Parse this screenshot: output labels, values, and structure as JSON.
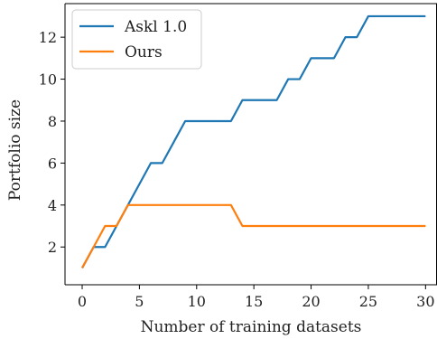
{
  "chart_data": {
    "type": "line",
    "xlabel": "Number of training datasets",
    "ylabel": "Portfolio size",
    "xlim": [
      -1.5,
      31
    ],
    "ylim": [
      0.2,
      13.6
    ],
    "xticks": [
      0,
      5,
      10,
      15,
      20,
      25,
      30
    ],
    "yticks": [
      2,
      4,
      6,
      8,
      10,
      12
    ],
    "grid": false,
    "legend_position": "top-left",
    "series": [
      {
        "name": "Askl 1.0",
        "color": "#1f77b4",
        "x": [
          0,
          1,
          2,
          3,
          4,
          5,
          6,
          7,
          8,
          9,
          10,
          11,
          12,
          13,
          14,
          15,
          16,
          17,
          18,
          19,
          20,
          21,
          22,
          23,
          24,
          25,
          26,
          27,
          28,
          29,
          30
        ],
        "y": [
          1,
          2,
          2,
          3,
          4,
          5,
          6,
          6,
          7,
          8,
          8,
          8,
          8,
          8,
          9,
          9,
          9,
          9,
          10,
          10,
          11,
          11,
          11,
          12,
          12,
          13,
          13,
          13,
          13,
          13,
          13
        ]
      },
      {
        "name": "Ours",
        "color": "#ff7f0e",
        "x": [
          0,
          1,
          2,
          3,
          4,
          5,
          6,
          7,
          8,
          9,
          10,
          11,
          12,
          13,
          14,
          15,
          16,
          17,
          18,
          19,
          20,
          21,
          22,
          23,
          24,
          25,
          26,
          27,
          28,
          29,
          30
        ],
        "y": [
          1,
          2,
          3,
          3,
          4,
          4,
          4,
          4,
          4,
          4,
          4,
          4,
          4,
          4,
          3,
          3,
          3,
          3,
          3,
          3,
          3,
          3,
          3,
          3,
          3,
          3,
          3,
          3,
          3,
          3,
          3
        ]
      }
    ]
  }
}
